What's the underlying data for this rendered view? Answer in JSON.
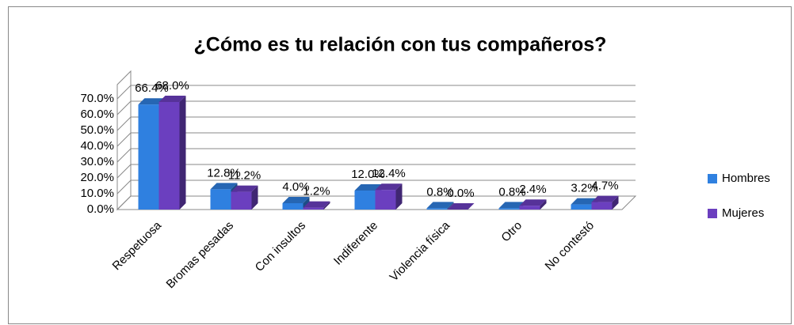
{
  "chart_data": {
    "type": "bar3d",
    "title": "¿Cómo es tu relación con tus compañeros?",
    "categories": [
      "Respetuosa",
      "Bromas pesadas",
      "Con insultos",
      "Indiferente",
      "Violencia física",
      "Otro",
      "No contestó"
    ],
    "series": [
      {
        "name": "Hombres",
        "color": "#2f80e0",
        "values": [
          66.4,
          12.8,
          4.0,
          12.0,
          0.8,
          0.8,
          3.2
        ],
        "value_labels": [
          "66.4%",
          "12.8%",
          "4.0%",
          "12.0%",
          "0.8%",
          "0.8%",
          "3.2%"
        ]
      },
      {
        "name": "Mujeres",
        "color": "#6b3fbf",
        "values": [
          68.0,
          11.2,
          1.2,
          12.4,
          0.0,
          2.4,
          4.7
        ],
        "value_labels": [
          "68.0%",
          "11.2%",
          "1.2%",
          "12.4%",
          "0.0%",
          "2.4%",
          "4.7%"
        ]
      }
    ],
    "ylim": [
      0,
      70
    ],
    "yticks": [
      {
        "value": 0,
        "label": "0.0%"
      },
      {
        "value": 10,
        "label": "10.0%"
      },
      {
        "value": 20,
        "label": "20.0%"
      },
      {
        "value": 30,
        "label": "30.0%"
      },
      {
        "value": 40,
        "label": "40.0%"
      },
      {
        "value": 50,
        "label": "50.0%"
      },
      {
        "value": 60,
        "label": "60.0%"
      },
      {
        "value": 70,
        "label": "70.0%"
      }
    ],
    "grid": true,
    "legend": "right"
  }
}
